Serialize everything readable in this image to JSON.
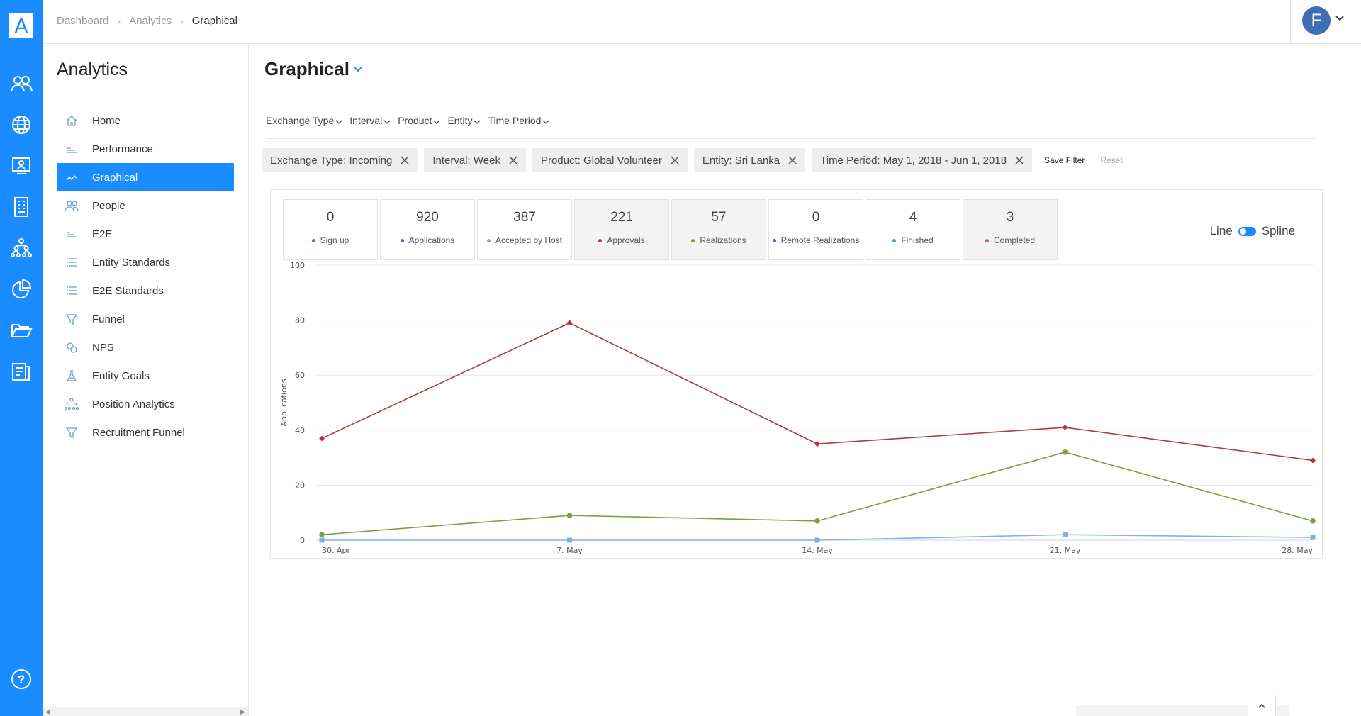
{
  "breadcrumb": [
    "Dashboard",
    "Analytics",
    "Graphical"
  ],
  "user": {
    "initial": "F"
  },
  "rail": {
    "logo": "A",
    "icons": [
      "people-icon",
      "globe-icon",
      "monitor-person-icon",
      "building-icon",
      "org-chart-icon",
      "pie-chart-icon",
      "folder-open-icon",
      "report-icon"
    ],
    "help": "?"
  },
  "sidebar": {
    "title": "Analytics",
    "items": [
      {
        "label": "Home",
        "icon": "home-icon"
      },
      {
        "label": "Performance",
        "icon": "performance-icon"
      },
      {
        "label": "Graphical",
        "icon": "line-graph-icon",
        "active": true
      },
      {
        "label": "People",
        "icon": "people-icon"
      },
      {
        "label": "E2E",
        "icon": "e2e-icon"
      },
      {
        "label": "Entity Standards",
        "icon": "list-icon"
      },
      {
        "label": "E2E Standards",
        "icon": "list-icon"
      },
      {
        "label": "Funnel",
        "icon": "funnel-icon"
      },
      {
        "label": "NPS",
        "icon": "nps-icon"
      },
      {
        "label": "Entity Goals",
        "icon": "flask-icon"
      },
      {
        "label": "Position Analytics",
        "icon": "hierarchy-icon"
      },
      {
        "label": "Recruitment Funnel",
        "icon": "funnel-icon"
      }
    ]
  },
  "page": {
    "title": "Graphical"
  },
  "filters": [
    "Exchange Type",
    "Interval",
    "Product",
    "Entity",
    "Time Period"
  ],
  "chips": [
    "Exchange Type: Incoming",
    "Interval: Week",
    "Product: Global Volunteer",
    "Entity: Sri Lanka",
    "Time Period: May 1, 2018 - Jun 1, 2018"
  ],
  "save_filter": "Save Filter",
  "reset": "Reset",
  "stats": [
    {
      "value": "0",
      "label": "Sign up",
      "color": "#c0504d",
      "selected": false
    },
    {
      "value": "920",
      "label": "Applications",
      "color": "#4a6fa5",
      "selected": false
    },
    {
      "value": "387",
      "label": "Accepted by Host",
      "color": "#7fa8d8",
      "selected": false
    },
    {
      "value": "221",
      "label": "Approvals",
      "color": "#b03a3a",
      "selected": true
    },
    {
      "value": "57",
      "label": "Realizations",
      "color": "#7a9a3a",
      "selected": true
    },
    {
      "value": "0",
      "label": "Remote Realizations",
      "color": "#6a5aa0",
      "selected": false
    },
    {
      "value": "4",
      "label": "Finished",
      "color": "#3a9ad8",
      "selected": false
    },
    {
      "value": "3",
      "label": "Completed",
      "color": "#e05050",
      "selected": true
    }
  ],
  "toggle": {
    "left": "Line",
    "right": "Spline"
  },
  "chart_data": {
    "type": "line",
    "categories": [
      "30. Apr",
      "7. May",
      "14. May",
      "21. May",
      "28. May"
    ],
    "ylabel": "Applications",
    "ylim": [
      0,
      100
    ],
    "yticks": [
      0,
      20,
      40,
      60,
      80,
      100
    ],
    "grid": true,
    "series": [
      {
        "name": "Approvals",
        "color": "#b03a3a",
        "marker": "diamond",
        "values": [
          37,
          79,
          35,
          41,
          29
        ]
      },
      {
        "name": "Realizations",
        "color": "#7aa040",
        "marker": "circle",
        "values": [
          2,
          9,
          7,
          32,
          7
        ]
      },
      {
        "name": "Completed",
        "color": "#7fb0e8",
        "marker": "square",
        "values": [
          0,
          0,
          0,
          2,
          1
        ]
      }
    ]
  }
}
